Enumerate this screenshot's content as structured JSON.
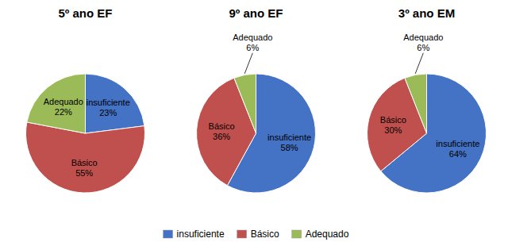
{
  "chart_data": [
    {
      "type": "pie",
      "title": "5º ano EF",
      "categories": [
        "insuficiente",
        "Básico",
        "Adequado"
      ],
      "values": [
        23,
        55,
        22
      ],
      "value_labels": [
        "23%",
        "55%",
        "22%"
      ],
      "colors": [
        "#4472C4",
        "#C0504D",
        "#9BBB59"
      ],
      "data_labels": true,
      "legend": "bottom"
    },
    {
      "type": "pie",
      "title": "9º ano EF",
      "categories": [
        "insuficiente",
        "Básico",
        "Adequado"
      ],
      "values": [
        58,
        36,
        6
      ],
      "value_labels": [
        "58%",
        "36%",
        "6%"
      ],
      "colors": [
        "#4472C4",
        "#C0504D",
        "#9BBB59"
      ],
      "data_labels": true
    },
    {
      "type": "pie",
      "title": "3º ano EM",
      "categories": [
        "insuficiente",
        "Básico",
        "Adequado"
      ],
      "values": [
        64,
        30,
        6
      ],
      "value_labels": [
        "64%",
        "30%",
        "6%"
      ],
      "colors": [
        "#4472C4",
        "#C0504D",
        "#9BBB59"
      ],
      "data_labels": true
    }
  ]
}
